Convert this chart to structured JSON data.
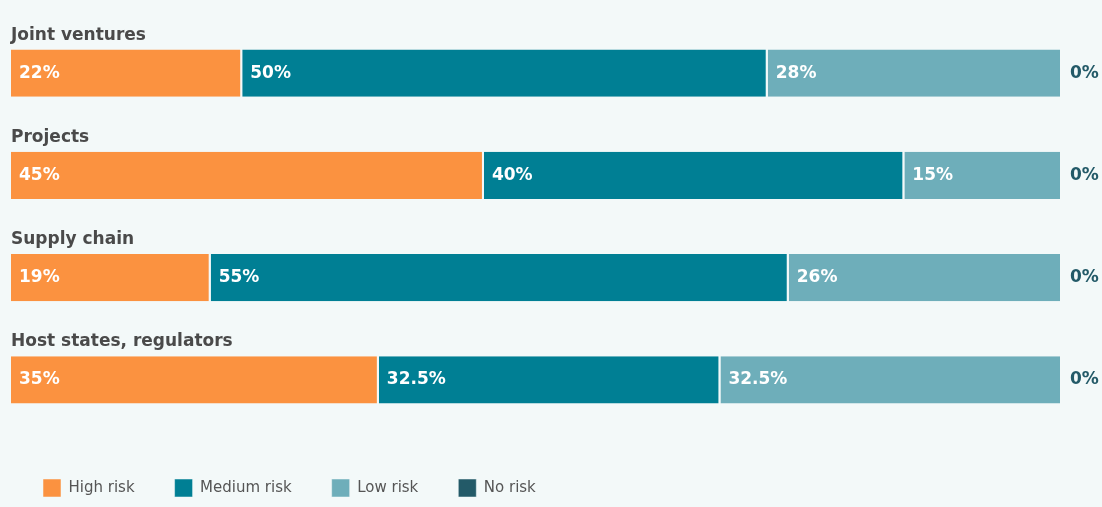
{
  "chart_data": {
    "type": "bar",
    "orientation": "horizontal",
    "stacked": true,
    "categories": [
      "Joint ventures",
      "Projects",
      "Supply chain",
      "Host states, regulators"
    ],
    "series": [
      {
        "name": "High risk",
        "color": "#fb9240",
        "values": [
          22,
          45,
          19,
          35
        ],
        "value_labels": [
          "22%",
          "45%",
          "19%",
          "35%"
        ]
      },
      {
        "name": "Medium risk",
        "color": "#007f94",
        "values": [
          50,
          40,
          55,
          32.5
        ],
        "value_labels": [
          "50%",
          "40%",
          "55%",
          "32.5%"
        ]
      },
      {
        "name": "Low risk",
        "color": "#6eaeba",
        "values": [
          28,
          15,
          26,
          32.5
        ],
        "value_labels": [
          "28%",
          "15%",
          "26%",
          "32.5%"
        ]
      },
      {
        "name": "No risk",
        "color": "#235a68",
        "values": [
          0,
          0,
          0,
          0
        ],
        "value_labels": [
          "0%",
          "0%",
          "0%",
          "0%"
        ]
      }
    ],
    "xlim": [
      0,
      100
    ],
    "tick_labels": false,
    "grid": false,
    "legend": "bottom left"
  }
}
